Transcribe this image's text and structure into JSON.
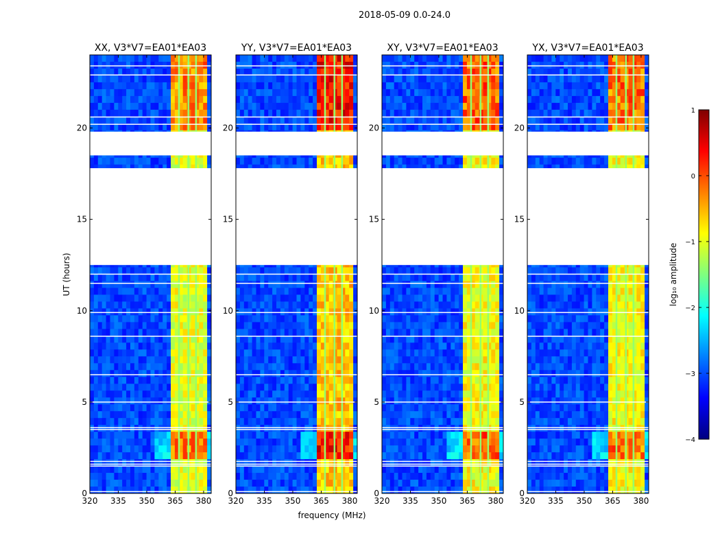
{
  "figure": {
    "suptitle": "2018-05-09 0.0-24.0",
    "xlabel": "frequency (MHz)",
    "ylabel": "UT (hours)"
  },
  "colorbar": {
    "label": "log₁₀ amplitude",
    "range": [
      -4,
      1
    ],
    "ticks": [
      1,
      0,
      -1,
      -2,
      -3,
      -4
    ],
    "tick_labels": [
      "1",
      "0",
      "−1",
      "−2",
      "−3",
      "−4"
    ],
    "colormap": "jet",
    "stops": [
      "#00007f",
      "#0000ff",
      "#007fff",
      "#00ffff",
      "#7fff7f",
      "#ffff00",
      "#ff7f00",
      "#ff0000",
      "#7f0000"
    ]
  },
  "chart_data": {
    "type": "heatmap",
    "x_range": [
      320,
      384
    ],
    "y_range": [
      0,
      24
    ],
    "x_ticks": [
      320,
      335,
      350,
      365,
      380
    ],
    "x_tick_labels": [
      "320",
      "335",
      "350",
      "365",
      "380"
    ],
    "y_ticks": [
      0,
      5,
      10,
      15,
      20
    ],
    "y_tick_labels": [
      "0",
      "5",
      "10",
      "15",
      "20"
    ],
    "missing_time_ranges": [
      [
        12.5,
        17.8
      ],
      [
        18.5,
        19.8
      ]
    ],
    "flagged_time_lines": [
      0.1,
      1.5,
      1.6,
      1.75,
      3.5,
      3.6,
      5.0,
      6.5,
      8.6,
      9.9,
      11.5,
      12.0,
      20.2,
      20.6,
      22.9,
      23.4
    ],
    "rfi_band_mhz": [
      362,
      381
    ],
    "rfi_channel_lines_mhz": [
      367,
      372,
      376
    ],
    "panels": [
      {
        "title": "XX, V3*V7=EA01*EA03",
        "band_level": -1.0,
        "burst_level": -0.3
      },
      {
        "title": "YY, V3*V7=EA01*EA03",
        "band_level": -0.6,
        "burst_level": 0.3
      },
      {
        "title": "XY, V3*V7=EA01*EA03",
        "band_level": -0.9,
        "burst_level": -0.1
      },
      {
        "title": "YX, V3*V7=EA01*EA03",
        "band_level": -0.9,
        "burst_level": -0.2
      }
    ]
  }
}
